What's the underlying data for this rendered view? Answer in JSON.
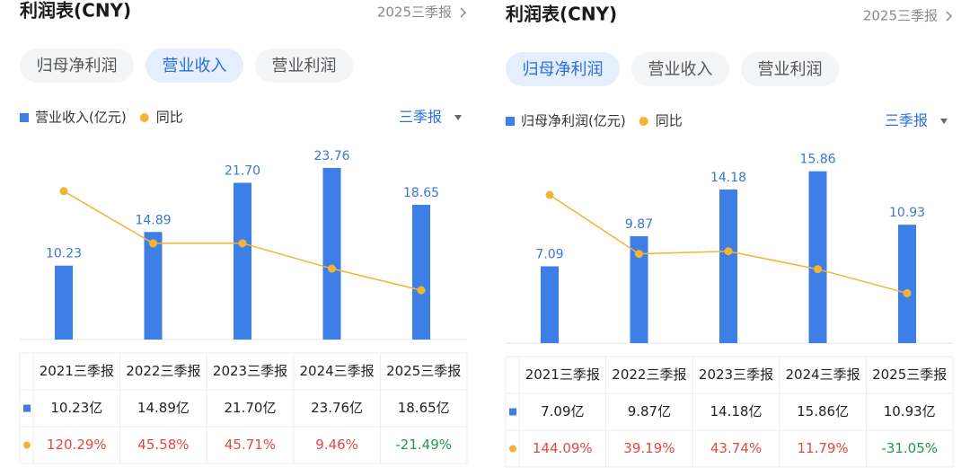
{
  "chart_data": [
    {
      "type": "bar",
      "title": "利润表(CNY)",
      "period_link": "2025三季报",
      "tabs": [
        "归母净利润",
        "营业收入",
        "营业利润"
      ],
      "active_tab": 1,
      "period_selector": "三季报",
      "categories": [
        "2021三季报",
        "2022三季报",
        "2023三季报",
        "2024三季报",
        "2025三季报"
      ],
      "series": [
        {
          "name": "营业收入(亿元)",
          "color": "#3d7fe6",
          "values": [
            10.23,
            14.89,
            21.7,
            23.76,
            18.65
          ],
          "value_labels": [
            "10.23",
            "14.89",
            "21.70",
            "23.76",
            "18.65"
          ],
          "table_labels": [
            "10.23亿",
            "14.89亿",
            "21.70亿",
            "23.76亿",
            "18.65亿"
          ]
        },
        {
          "name": "同比",
          "type": "line",
          "axis": "y2",
          "color": "#f3b431",
          "values": [
            120.29,
            45.58,
            45.71,
            9.46,
            -21.49
          ],
          "value_labels": [
            "120.29%",
            "45.58%",
            "45.71%",
            "9.46%",
            "-21.49%"
          ]
        }
      ],
      "ylim": [
        0,
        24
      ],
      "y2lim": [
        -92,
        156
      ],
      "positive_color": "#e5483f",
      "negative_color": "#1f9a4d"
    },
    {
      "type": "bar",
      "title": "利润表(CNY)",
      "period_link": "2025三季报",
      "tabs": [
        "归母净利润",
        "营业收入",
        "营业利润"
      ],
      "active_tab": 0,
      "period_selector": "三季报",
      "categories": [
        "2021三季报",
        "2022三季报",
        "2023三季报",
        "2024三季报",
        "2025三季报"
      ],
      "series": [
        {
          "name": "归母净利润(亿元)",
          "color": "#3d7fe6",
          "values": [
            7.09,
            9.87,
            14.18,
            15.86,
            10.93
          ],
          "value_labels": [
            "7.09",
            "9.87",
            "14.18",
            "15.86",
            "10.93"
          ],
          "table_labels": [
            "7.09亿",
            "9.87亿",
            "14.18亿",
            "15.86亿",
            "10.93亿"
          ]
        },
        {
          "name": "同比",
          "type": "line",
          "axis": "y2",
          "color": "#f3b431",
          "values": [
            144.09,
            39.19,
            43.74,
            11.79,
            -31.05
          ],
          "value_labels": [
            "144.09%",
            "39.19%",
            "43.74%",
            "11.79%",
            "-31.05%"
          ]
        }
      ],
      "ylim": [
        0,
        16
      ],
      "y2lim": [
        -120,
        189
      ],
      "positive_color": "#e5483f",
      "negative_color": "#1f9a4d"
    }
  ]
}
